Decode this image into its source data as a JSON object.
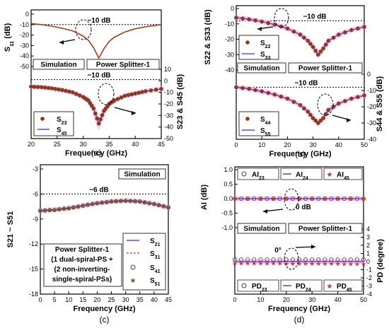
{
  "panels": {
    "a": {
      "caption": "(a)",
      "xlabel": "Frequency (GHz)",
      "xticks": [
        "20",
        "25",
        "30",
        "35",
        "40",
        "45"
      ],
      "ylabel_left": "S11 (dB)",
      "ylabel_right": "S23 & S45 (dB)",
      "yticks_left": [
        "0",
        "-10",
        "-20",
        "-30",
        "-40",
        "-50"
      ],
      "yticks_right": [
        "10",
        "0",
        "-10",
        "-20",
        "-30",
        "-40",
        "-50"
      ],
      "ref_top": "−10 dB",
      "ref_bottom": "−10 dB",
      "box_left": "Simulation",
      "box_right": "Power Splitter-1",
      "legend": [
        "S23",
        "S45"
      ]
    },
    "b": {
      "caption": "(b)",
      "xlabel": "Frequency (GHz)",
      "xticks": [
        "0",
        "10",
        "20",
        "30",
        "40",
        "50"
      ],
      "ylabel_left": "S22 & S33 (dB)",
      "ylabel_right": "S44 & S55 (dB)",
      "yticks_left": [
        "0",
        "-10",
        "-20",
        "-30",
        "-40"
      ],
      "yticks_right": [
        "0",
        "-10",
        "-20",
        "-30",
        "-40"
      ],
      "ref_top": "−10 dB",
      "ref_bottom": "−10 dB",
      "box_left": "Simulation",
      "box_right": "Power Splitter-1",
      "legend_top": [
        "S22",
        "S33"
      ],
      "legend_bottom": [
        "S44",
        "S55"
      ]
    },
    "c": {
      "caption": "(c)",
      "xlabel": "Frequency (GHz)",
      "xticks": [
        "0",
        "5",
        "10",
        "15",
        "20",
        "25",
        "30",
        "35",
        "40",
        "45"
      ],
      "ylabel": "S21 ~ S51",
      "yticks": [
        "-3",
        "-6",
        "-9",
        "-12",
        "-15",
        "-18"
      ],
      "ref": "−6 dB",
      "box": "Simulation",
      "legend": [
        "S21",
        "S31",
        "S41",
        "S51"
      ],
      "note": [
        "Power Splitter-1",
        "(1 dual-spiral-PS +",
        "(2 non-inverting-",
        "single-spiral-PSs)"
      ]
    },
    "d": {
      "caption": "(d)",
      "xlabel": "Frequency (GHz)",
      "xticks": [
        "0",
        "10",
        "20",
        "30",
        "40",
        "50"
      ],
      "ylabel_left": "AI (dB)",
      "ylabel_right": "PD (degree)",
      "yticks_left": [
        "1.0",
        "0.5",
        "0.0",
        "-0.5",
        "-1.0"
      ],
      "yticks_right": [
        "4",
        "3",
        "2",
        "1",
        "0",
        "-1",
        "-2",
        "-3",
        "-4"
      ],
      "ref_top": "0 dB",
      "ref_bottom": "0°",
      "box_left": "Simulation",
      "box_right": "Power Splitter-1",
      "legend_top": [
        "AI23",
        "AI24",
        "AI45"
      ],
      "legend_bottom": [
        "PD23",
        "PD24",
        "PD45"
      ]
    }
  },
  "chart_data": [
    {
      "panel": "a",
      "type": "line",
      "xlim": [
        20,
        45
      ],
      "series": [
        {
          "name": "S11",
          "axis": "left",
          "x": [
            20,
            22,
            24,
            26,
            28,
            30,
            31,
            32,
            33,
            34,
            35,
            36,
            38,
            40,
            42,
            45
          ],
          "y": [
            -9,
            -10,
            -11.5,
            -13.5,
            -16,
            -21,
            -25,
            -32,
            -42,
            -33,
            -26,
            -22,
            -17,
            -14,
            -12,
            -10
          ]
        },
        {
          "name": "S23",
          "axis": "right",
          "x": [
            20,
            22,
            24,
            26,
            28,
            30,
            31,
            32,
            33,
            34,
            35,
            36,
            38,
            40,
            42,
            45
          ],
          "y": [
            -5,
            -5.5,
            -6.5,
            -8,
            -10,
            -14,
            -17,
            -24,
            -37,
            -26,
            -20,
            -17,
            -13,
            -11,
            -9,
            -7
          ]
        },
        {
          "name": "S45",
          "axis": "right",
          "x": [
            20,
            22,
            24,
            26,
            28,
            30,
            31,
            32,
            33,
            34,
            35,
            36,
            38,
            40,
            42,
            45
          ],
          "y": [
            -5,
            -5.5,
            -6.5,
            -8,
            -10,
            -14,
            -17,
            -24,
            -37,
            -26,
            -20,
            -17,
            -13,
            -11,
            -9,
            -7
          ]
        }
      ],
      "ylim_left": [
        -50,
        0
      ],
      "ylim_right": [
        -50,
        10
      ]
    },
    {
      "panel": "b",
      "type": "line",
      "xlim": [
        0,
        50
      ],
      "series": [
        {
          "name": "S22",
          "axis": "left",
          "x": [
            0,
            5,
            10,
            15,
            20,
            25,
            28,
            30,
            32,
            34,
            36,
            40,
            45,
            50
          ],
          "y": [
            -6,
            -7,
            -8.5,
            -10.5,
            -13,
            -17,
            -21,
            -25,
            -30,
            -26,
            -21,
            -17,
            -14,
            -12
          ]
        },
        {
          "name": "S33",
          "axis": "left",
          "x": [
            0,
            5,
            10,
            15,
            20,
            25,
            28,
            30,
            32,
            34,
            36,
            40,
            45,
            50
          ],
          "y": [
            -6,
            -7,
            -8.5,
            -10.5,
            -13,
            -17,
            -21,
            -25,
            -30,
            -26,
            -21,
            -17,
            -14,
            -12
          ]
        },
        {
          "name": "S44",
          "axis": "right",
          "x": [
            0,
            5,
            10,
            15,
            20,
            25,
            28,
            30,
            32,
            34,
            36,
            40,
            45,
            50
          ],
          "y": [
            -8,
            -9,
            -10.5,
            -12.5,
            -15,
            -19,
            -23,
            -27,
            -30,
            -27,
            -22,
            -18,
            -15,
            -13
          ]
        },
        {
          "name": "S55",
          "axis": "right",
          "x": [
            0,
            5,
            10,
            15,
            20,
            25,
            28,
            30,
            32,
            34,
            36,
            40,
            45,
            50
          ],
          "y": [
            -8,
            -9,
            -10.5,
            -12.5,
            -15,
            -19,
            -23,
            -27,
            -30,
            -27,
            -22,
            -18,
            -15,
            -13
          ]
        }
      ],
      "ylim_left": [
        -40,
        0
      ],
      "ylim_right": [
        -40,
        0
      ]
    },
    {
      "panel": "c",
      "type": "line",
      "xlim": [
        0,
        45
      ],
      "series": [
        {
          "name": "S21",
          "x": [
            0,
            5,
            10,
            15,
            20,
            25,
            30,
            35,
            40,
            45
          ],
          "y": [
            -8.0,
            -7.9,
            -7.7,
            -7.4,
            -7.1,
            -6.9,
            -6.8,
            -6.9,
            -7.2,
            -7.6
          ]
        },
        {
          "name": "S31",
          "x": [
            0,
            5,
            10,
            15,
            20,
            25,
            30,
            35,
            40,
            45
          ],
          "y": [
            -8.0,
            -7.9,
            -7.7,
            -7.4,
            -7.1,
            -6.9,
            -6.8,
            -6.9,
            -7.2,
            -7.6
          ]
        },
        {
          "name": "S41",
          "x": [
            0,
            5,
            10,
            15,
            20,
            25,
            30,
            35,
            40,
            45
          ],
          "y": [
            -8.0,
            -7.9,
            -7.7,
            -7.4,
            -7.1,
            -6.9,
            -6.8,
            -6.9,
            -7.2,
            -7.6
          ]
        },
        {
          "name": "S51",
          "x": [
            0,
            5,
            10,
            15,
            20,
            25,
            30,
            35,
            40,
            45
          ],
          "y": [
            -8.0,
            -7.9,
            -7.7,
            -7.4,
            -7.1,
            -6.9,
            -6.8,
            -6.9,
            -7.2,
            -7.6
          ]
        }
      ],
      "ylim": [
        -18,
        -3
      ]
    },
    {
      "panel": "d",
      "type": "line",
      "xlim": [
        0,
        50
      ],
      "series": [
        {
          "name": "AI23",
          "axis": "left",
          "x": [
            0,
            10,
            20,
            30,
            40,
            50
          ],
          "y": [
            0,
            0,
            0,
            0,
            0,
            0
          ]
        },
        {
          "name": "AI24",
          "axis": "left",
          "x": [
            0,
            10,
            20,
            30,
            40,
            50
          ],
          "y": [
            0,
            0,
            0,
            0,
            0,
            0
          ]
        },
        {
          "name": "AI45",
          "axis": "left",
          "x": [
            0,
            10,
            20,
            30,
            40,
            50
          ],
          "y": [
            0,
            0,
            0,
            0,
            0,
            0
          ]
        },
        {
          "name": "PD23",
          "axis": "right",
          "x": [
            0,
            10,
            20,
            30,
            40,
            50
          ],
          "y": [
            0,
            0,
            0,
            0,
            0,
            0
          ]
        },
        {
          "name": "PD24",
          "axis": "right",
          "x": [
            0,
            10,
            20,
            30,
            40,
            50
          ],
          "y": [
            0,
            0,
            0,
            0,
            0,
            0
          ]
        },
        {
          "name": "PD45",
          "axis": "right",
          "x": [
            0,
            10,
            20,
            30,
            40,
            50
          ],
          "y": [
            -0.2,
            -0.2,
            -0.3,
            -0.3,
            -0.3,
            -0.3
          ]
        }
      ],
      "ylim_left": [
        -1.5,
        1.0
      ],
      "ylim_right": [
        -4,
        4
      ]
    }
  ]
}
